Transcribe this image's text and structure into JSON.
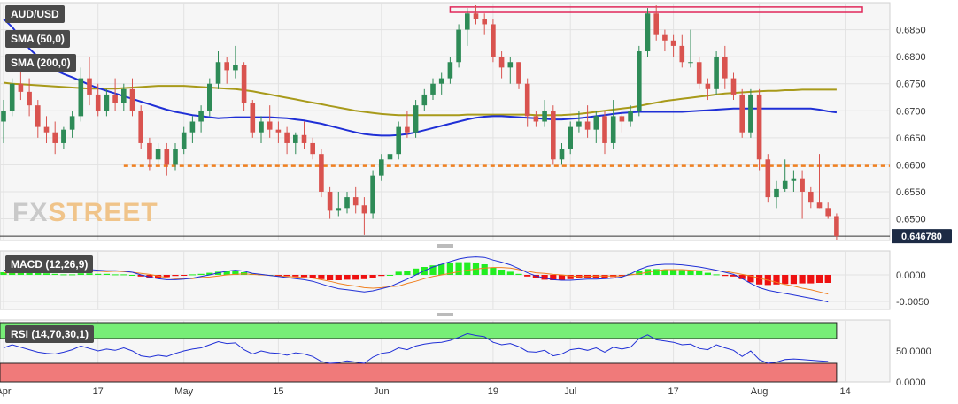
{
  "symbol_label": "AUD/USD",
  "sma50_label": "SMA (50,0)",
  "sma200_label": "SMA (200,0)",
  "macd_label": "MACD (12,26,9)",
  "rsi_label": "RSI (14,70,30,1)",
  "watermark": {
    "text_gray": "FX",
    "text_accent": "STREET"
  },
  "current_price_label": "0.646780",
  "colors": {
    "bull": "#2e8b57",
    "bear": "#d9534f",
    "sma50": "#1f2fd6",
    "sma200": "#a89a1a",
    "hline": "#f08020",
    "zone": "#e0285a",
    "macd_line": "#1f2fd6",
    "signal_line": "#f08020",
    "hist_pos": "#22ee22",
    "hist_neg": "#ee1111",
    "rsi_line": "#1f2fd6",
    "rsi_over": "#77ee77",
    "rsi_under": "#f07a7a"
  },
  "chart_data": {
    "type": "candlestick",
    "price_axis": {
      "ticks": [
        "0.6850",
        "0.6800",
        "0.6750",
        "0.6700",
        "0.6650",
        "0.6600",
        "0.6550",
        "0.6500"
      ],
      "range": [
        0.646,
        0.69
      ]
    },
    "x_axis": {
      "ticks": [
        {
          "label": "Apr",
          "index": 0
        },
        {
          "label": "17",
          "index": 11
        },
        {
          "label": "May",
          "index": 21
        },
        {
          "label": "15",
          "index": 32
        },
        {
          "label": "Jun",
          "index": 44
        },
        {
          "label": "19",
          "index": 57
        },
        {
          "label": "Jul",
          "index": 66
        },
        {
          "label": "17",
          "index": 78
        },
        {
          "label": "Aug",
          "index": 88
        },
        {
          "label": "14",
          "index": 98
        }
      ]
    },
    "horizontal_line": 0.6598,
    "resistance_zone": {
      "from_index": 52,
      "to_index": 100,
      "top": 0.6892,
      "bottom": 0.6882
    },
    "current_price": 0.6468,
    "candles": [
      [
        0.668,
        0.672,
        0.664,
        0.67
      ],
      [
        0.67,
        0.676,
        0.669,
        0.675
      ],
      [
        0.675,
        0.678,
        0.672,
        0.6735
      ],
      [
        0.6735,
        0.676,
        0.669,
        0.671
      ],
      [
        0.671,
        0.672,
        0.665,
        0.667
      ],
      [
        0.667,
        0.669,
        0.664,
        0.666
      ],
      [
        0.666,
        0.668,
        0.662,
        0.664
      ],
      [
        0.664,
        0.667,
        0.663,
        0.6665
      ],
      [
        0.6665,
        0.67,
        0.665,
        0.669
      ],
      [
        0.669,
        0.678,
        0.668,
        0.676
      ],
      [
        0.676,
        0.68,
        0.671,
        0.673
      ],
      [
        0.673,
        0.675,
        0.669,
        0.67
      ],
      [
        0.67,
        0.674,
        0.669,
        0.673
      ],
      [
        0.673,
        0.676,
        0.67,
        0.6715
      ],
      [
        0.6715,
        0.675,
        0.67,
        0.674
      ],
      [
        0.674,
        0.676,
        0.669,
        0.67
      ],
      [
        0.67,
        0.671,
        0.663,
        0.664
      ],
      [
        0.664,
        0.665,
        0.659,
        0.661
      ],
      [
        0.661,
        0.664,
        0.66,
        0.663
      ],
      [
        0.663,
        0.664,
        0.658,
        0.66
      ],
      [
        0.66,
        0.664,
        0.659,
        0.663
      ],
      [
        0.663,
        0.667,
        0.662,
        0.666
      ],
      [
        0.666,
        0.669,
        0.664,
        0.668
      ],
      [
        0.668,
        0.671,
        0.666,
        0.67
      ],
      [
        0.67,
        0.676,
        0.669,
        0.675
      ],
      [
        0.675,
        0.681,
        0.674,
        0.679
      ],
      [
        0.679,
        0.68,
        0.675,
        0.6775
      ],
      [
        0.6775,
        0.682,
        0.676,
        0.6785
      ],
      [
        0.6785,
        0.679,
        0.67,
        0.6715
      ],
      [
        0.6715,
        0.672,
        0.665,
        0.666
      ],
      [
        0.666,
        0.669,
        0.664,
        0.668
      ],
      [
        0.668,
        0.671,
        0.665,
        0.6665
      ],
      [
        0.6665,
        0.668,
        0.664,
        0.666
      ],
      [
        0.666,
        0.667,
        0.662,
        0.664
      ],
      [
        0.664,
        0.666,
        0.662,
        0.6655
      ],
      [
        0.6655,
        0.668,
        0.663,
        0.664
      ],
      [
        0.664,
        0.665,
        0.661,
        0.662
      ],
      [
        0.662,
        0.663,
        0.654,
        0.655
      ],
      [
        0.655,
        0.656,
        0.65,
        0.6515
      ],
      [
        0.6515,
        0.655,
        0.6505,
        0.652
      ],
      [
        0.652,
        0.655,
        0.651,
        0.654
      ],
      [
        0.654,
        0.656,
        0.651,
        0.6525
      ],
      [
        0.6525,
        0.654,
        0.647,
        0.651
      ],
      [
        0.651,
        0.659,
        0.65,
        0.658
      ],
      [
        0.658,
        0.662,
        0.657,
        0.661
      ],
      [
        0.661,
        0.664,
        0.659,
        0.662
      ],
      [
        0.662,
        0.668,
        0.661,
        0.667
      ],
      [
        0.667,
        0.67,
        0.665,
        0.666
      ],
      [
        0.666,
        0.672,
        0.665,
        0.671
      ],
      [
        0.671,
        0.674,
        0.67,
        0.673
      ],
      [
        0.673,
        0.676,
        0.672,
        0.675
      ],
      [
        0.675,
        0.677,
        0.673,
        0.676
      ],
      [
        0.676,
        0.68,
        0.675,
        0.679
      ],
      [
        0.679,
        0.686,
        0.678,
        0.685
      ],
      [
        0.685,
        0.689,
        0.682,
        0.688
      ],
      [
        0.688,
        0.6895,
        0.686,
        0.687
      ],
      [
        0.687,
        0.688,
        0.684,
        0.686
      ],
      [
        0.686,
        0.687,
        0.679,
        0.68
      ],
      [
        0.68,
        0.681,
        0.676,
        0.678
      ],
      [
        0.678,
        0.68,
        0.675,
        0.679
      ],
      [
        0.679,
        0.679,
        0.674,
        0.675
      ],
      [
        0.675,
        0.676,
        0.667,
        0.669
      ],
      [
        0.669,
        0.67,
        0.667,
        0.668
      ],
      [
        0.668,
        0.672,
        0.667,
        0.67
      ],
      [
        0.67,
        0.671,
        0.66,
        0.661
      ],
      [
        0.661,
        0.664,
        0.66,
        0.663
      ],
      [
        0.663,
        0.668,
        0.662,
        0.667
      ],
      [
        0.667,
        0.67,
        0.666,
        0.668
      ],
      [
        0.668,
        0.671,
        0.665,
        0.6665
      ],
      [
        0.6665,
        0.67,
        0.664,
        0.669
      ],
      [
        0.669,
        0.67,
        0.662,
        0.664
      ],
      [
        0.664,
        0.672,
        0.663,
        0.669
      ],
      [
        0.669,
        0.67,
        0.666,
        0.668
      ],
      [
        0.668,
        0.671,
        0.667,
        0.67
      ],
      [
        0.67,
        0.682,
        0.669,
        0.681
      ],
      [
        0.681,
        0.689,
        0.68,
        0.688
      ],
      [
        0.688,
        0.6895,
        0.683,
        0.684
      ],
      [
        0.684,
        0.685,
        0.681,
        0.683
      ],
      [
        0.683,
        0.684,
        0.68,
        0.682
      ],
      [
        0.682,
        0.684,
        0.678,
        0.679
      ],
      [
        0.679,
        0.685,
        0.678,
        0.679
      ],
      [
        0.679,
        0.68,
        0.674,
        0.675
      ],
      [
        0.675,
        0.676,
        0.672,
        0.674
      ],
      [
        0.674,
        0.681,
        0.673,
        0.68
      ],
      [
        0.68,
        0.682,
        0.674,
        0.676
      ],
      [
        0.676,
        0.677,
        0.672,
        0.673
      ],
      [
        0.673,
        0.674,
        0.665,
        0.666
      ],
      [
        0.666,
        0.674,
        0.665,
        0.673
      ],
      [
        0.673,
        0.674,
        0.659,
        0.661
      ],
      [
        0.661,
        0.662,
        0.653,
        0.654
      ],
      [
        0.654,
        0.657,
        0.652,
        0.6555
      ],
      [
        0.6555,
        0.661,
        0.655,
        0.657
      ],
      [
        0.657,
        0.659,
        0.655,
        0.6575
      ],
      [
        0.6575,
        0.659,
        0.65,
        0.655
      ],
      [
        0.655,
        0.656,
        0.652,
        0.653
      ],
      [
        0.653,
        0.662,
        0.652,
        0.652
      ],
      [
        0.652,
        0.653,
        0.65,
        0.6505
      ],
      [
        0.6505,
        0.651,
        0.646,
        0.6468
      ]
    ],
    "sma50": [
      0.687,
      0.6855,
      0.6835,
      0.6815,
      0.68,
      0.6785,
      0.6775,
      0.6768,
      0.6762,
      0.6755,
      0.6748,
      0.6742,
      0.6737,
      0.6732,
      0.6727,
      0.6722,
      0.6717,
      0.6712,
      0.6707,
      0.6702,
      0.6698,
      0.6695,
      0.6692,
      0.669,
      0.6688,
      0.6686,
      0.6687,
      0.6688,
      0.6688,
      0.6688,
      0.6688,
      0.6688,
      0.6687,
      0.6686,
      0.6684,
      0.6682,
      0.6679,
      0.6676,
      0.6672,
      0.6668,
      0.6664,
      0.666,
      0.6657,
      0.6655,
      0.6654,
      0.6654,
      0.6655,
      0.6657,
      0.666,
      0.6664,
      0.6668,
      0.6672,
      0.6676,
      0.668,
      0.6684,
      0.6687,
      0.6689,
      0.669,
      0.669,
      0.6689,
      0.6688,
      0.6687,
      0.6686,
      0.6685,
      0.6684,
      0.6684,
      0.6685,
      0.6686,
      0.6688,
      0.669,
      0.6692,
      0.6694,
      0.6696,
      0.6697,
      0.6698,
      0.6698,
      0.6698,
      0.6698,
      0.6698,
      0.6698,
      0.6699,
      0.67,
      0.6701,
      0.6702,
      0.6703,
      0.6704,
      0.6704,
      0.6704,
      0.6704,
      0.6704,
      0.6704,
      0.6704,
      0.6704,
      0.6704,
      0.6704,
      0.6702,
      0.6699,
      0.6697
    ],
    "sma200": [
      0.6752,
      0.675,
      0.6749,
      0.6748,
      0.6747,
      0.6746,
      0.6745,
      0.6744,
      0.6743,
      0.6742,
      0.6741,
      0.6741,
      0.6741,
      0.6741,
      0.6742,
      0.6743,
      0.6744,
      0.6745,
      0.6746,
      0.6746,
      0.6746,
      0.6746,
      0.6745,
      0.6744,
      0.6743,
      0.6742,
      0.6741,
      0.674,
      0.6738,
      0.6736,
      0.6733,
      0.673,
      0.6727,
      0.6724,
      0.6721,
      0.6718,
      0.6715,
      0.6712,
      0.6709,
      0.6706,
      0.6703,
      0.67,
      0.6698,
      0.6696,
      0.6694,
      0.6693,
      0.6692,
      0.6692,
      0.6692,
      0.6692,
      0.6692,
      0.6692,
      0.6692,
      0.6692,
      0.6693,
      0.6693,
      0.6693,
      0.6693,
      0.6693,
      0.6693,
      0.6693,
      0.6693,
      0.6692,
      0.6692,
      0.6692,
      0.6692,
      0.6693,
      0.6694,
      0.6696,
      0.6698,
      0.67,
      0.6702,
      0.6704,
      0.6706,
      0.6709,
      0.6712,
      0.6715,
      0.6718,
      0.672,
      0.6722,
      0.6724,
      0.6726,
      0.6728,
      0.673,
      0.6732,
      0.6733,
      0.6734,
      0.6735,
      0.6736,
      0.6737,
      0.6737,
      0.6738,
      0.6738,
      0.6739,
      0.6739,
      0.6739,
      0.6739,
      0.6739
    ],
    "macd": {
      "axis_ticks": [
        "0.0000",
        "-0.0050"
      ],
      "range": [
        -0.0065,
        0.0045
      ],
      "hist": [
        0.0005,
        0.0006,
        0.0007,
        0.0006,
        0.0004,
        0.0003,
        0.0002,
        0.0001,
        0.0001,
        0.0003,
        0.0003,
        0.0002,
        0.0002,
        0.0001,
        0.0001,
        0.0,
        -0.0003,
        -0.0005,
        -0.0005,
        -0.0004,
        -0.0002,
        -0.0001,
        0.0001,
        0.0002,
        0.0004,
        0.0006,
        0.0007,
        0.0008,
        0.0005,
        0.0002,
        0.0001,
        0.0,
        -0.0001,
        -0.0002,
        -0.0003,
        -0.0004,
        -0.0006,
        -0.0008,
        -0.001,
        -0.001,
        -0.0009,
        -0.0009,
        -0.0008,
        -0.0005,
        -0.0002,
        0.0,
        0.0006,
        0.0008,
        0.0012,
        0.0015,
        0.0018,
        0.002,
        0.0022,
        0.0024,
        0.0024,
        0.0023,
        0.002,
        0.0014,
        0.001,
        0.0006,
        0.0002,
        -0.0003,
        -0.0006,
        -0.0009,
        -0.001,
        -0.001,
        -0.0008,
        -0.0006,
        -0.0005,
        -0.0006,
        -0.0005,
        -0.0004,
        -0.0002,
        0.0002,
        0.0008,
        0.0011,
        0.0011,
        0.001,
        0.001,
        0.0009,
        0.0008,
        0.0007,
        0.0004,
        0.0001,
        -0.0002,
        -0.0003,
        -0.0008,
        -0.0014,
        -0.0018,
        -0.0019,
        -0.0018,
        -0.0017,
        -0.0017,
        -0.0016,
        -0.0016,
        -0.0015,
        -0.0015
      ],
      "macd": [
        0.0009,
        0.001,
        0.0011,
        0.0011,
        0.001,
        0.0009,
        0.0008,
        0.0007,
        0.0007,
        0.0009,
        0.001,
        0.0009,
        0.0008,
        0.0008,
        0.0007,
        0.0005,
        0.0,
        -0.0004,
        -0.0007,
        -0.0009,
        -0.0009,
        -0.0008,
        -0.0006,
        -0.0003,
        0.0,
        0.0004,
        0.0007,
        0.0009,
        0.0007,
        0.0003,
        0.0001,
        -0.0001,
        -0.0003,
        -0.0005,
        -0.0007,
        -0.0009,
        -0.0012,
        -0.0017,
        -0.0022,
        -0.0026,
        -0.0028,
        -0.003,
        -0.0032,
        -0.003,
        -0.0026,
        -0.0022,
        -0.0015,
        -0.0008,
        0.0,
        0.0008,
        0.0015,
        0.002,
        0.0025,
        0.003,
        0.0033,
        0.0034,
        0.0033,
        0.0028,
        0.0024,
        0.0019,
        0.0012,
        0.0004,
        -0.0002,
        -0.0006,
        -0.0009,
        -0.001,
        -0.001,
        -0.0009,
        -0.0008,
        -0.0008,
        -0.0007,
        -0.0006,
        -0.0004,
        0.0002,
        0.001,
        0.0016,
        0.0019,
        0.002,
        0.002,
        0.0019,
        0.0017,
        0.0015,
        0.0012,
        0.0009,
        0.0005,
        0.0001,
        -0.0007,
        -0.0016,
        -0.0024,
        -0.0029,
        -0.0032,
        -0.0035,
        -0.0038,
        -0.0041,
        -0.0044,
        -0.0047,
        -0.0051
      ],
      "signal": [
        0.0004,
        0.0004,
        0.0004,
        0.0005,
        0.0006,
        0.0006,
        0.0006,
        0.0006,
        0.0006,
        0.0006,
        0.0007,
        0.0007,
        0.0006,
        0.0007,
        0.0006,
        0.0005,
        0.0003,
        0.0001,
        -0.0002,
        -0.0005,
        -0.0007,
        -0.0007,
        -0.0007,
        -0.0005,
        -0.0004,
        -0.0002,
        0.0,
        0.0001,
        0.0002,
        0.0001,
        0.0,
        -0.0001,
        -0.0002,
        -0.0003,
        -0.0004,
        -0.0005,
        -0.0006,
        -0.0009,
        -0.0012,
        -0.0016,
        -0.0019,
        -0.0021,
        -0.0024,
        -0.0025,
        -0.0024,
        -0.0022,
        -0.0021,
        -0.0016,
        -0.0012,
        -0.0007,
        -0.0003,
        0.0,
        0.0003,
        0.0006,
        0.0009,
        0.0011,
        0.0013,
        0.0014,
        0.0014,
        0.0013,
        0.001,
        0.0007,
        0.0004,
        0.0003,
        0.0001,
        0.0,
        -0.0002,
        -0.0003,
        -0.0003,
        -0.0002,
        -0.0002,
        -0.0002,
        -0.0002,
        0.0,
        0.0002,
        0.0005,
        0.0008,
        0.001,
        0.001,
        0.001,
        0.0009,
        0.0008,
        0.0008,
        0.0008,
        0.0007,
        0.0004,
        0.0001,
        -0.0002,
        -0.0006,
        -0.001,
        -0.0014,
        -0.0018,
        -0.0021,
        -0.0025,
        -0.0028,
        -0.0032,
        -0.0036
      ]
    },
    "rsi": {
      "axis_ticks": [
        "50.0000",
        "0.0000"
      ],
      "range": [
        0,
        100
      ],
      "overbought": 70,
      "oversold": 30,
      "values": [
        55,
        60,
        56,
        52,
        48,
        46,
        45,
        48,
        52,
        58,
        54,
        50,
        53,
        51,
        55,
        50,
        42,
        40,
        43,
        41,
        46,
        50,
        53,
        55,
        60,
        65,
        62,
        63,
        52,
        45,
        50,
        47,
        46,
        43,
        47,
        45,
        41,
        33,
        30,
        31,
        34,
        32,
        30,
        40,
        46,
        48,
        55,
        52,
        58,
        61,
        63,
        64,
        67,
        72,
        78,
        75,
        73,
        64,
        60,
        62,
        57,
        49,
        48,
        51,
        42,
        45,
        52,
        54,
        51,
        55,
        48,
        56,
        53,
        56,
        70,
        76,
        68,
        66,
        64,
        60,
        61,
        54,
        52,
        60,
        55,
        51,
        41,
        50,
        36,
        30,
        32,
        36,
        37,
        36,
        35,
        34,
        33
      ]
    }
  }
}
